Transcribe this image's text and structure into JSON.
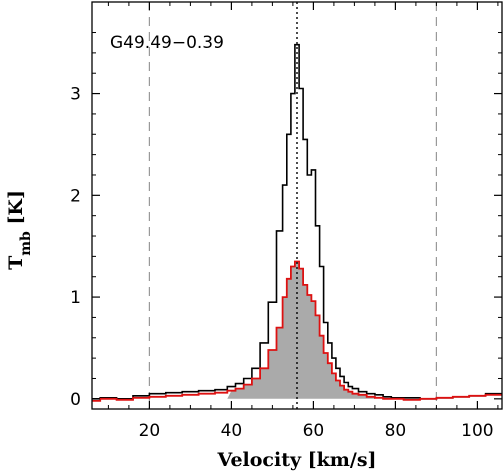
{
  "chart_data": {
    "type": "line",
    "source_label": "G49.49−0.39",
    "xlabel": "Velocity [km/s]",
    "ylabel_main": "T",
    "ylabel_sub": "mb",
    "ylabel_unit": " [K]",
    "xlim": [
      6,
      106
    ],
    "ylim": [
      -0.1,
      3.9
    ],
    "x_ticks": [
      20,
      40,
      60,
      80,
      100
    ],
    "y_ticks": [
      0,
      1,
      2,
      3
    ],
    "x_tick_labels": [
      "20",
      "40",
      "60",
      "80",
      "100"
    ],
    "y_tick_labels": [
      "0",
      "1",
      "2",
      "3"
    ],
    "vlines_dashed": [
      20,
      90
    ],
    "vline_dotted": 56,
    "grid": false,
    "colors": {
      "black_series": "#000000",
      "red_series": "#dd1111",
      "fill": "#aaaaaa",
      "dashed": "#999999"
    },
    "series": [
      {
        "style": "histogram-black",
        "x": [
          6,
          10,
          14,
          18,
          22,
          26,
          30,
          34,
          38,
          40,
          42,
          44,
          46,
          48,
          50,
          52,
          53,
          54,
          55,
          56,
          57,
          58,
          59,
          60,
          61,
          62,
          63,
          64,
          65,
          66,
          67,
          68,
          69,
          70,
          72,
          74,
          76,
          78,
          80,
          84,
          88,
          92,
          96,
          100,
          104
        ],
        "y": [
          0.0,
          0.01,
          0.0,
          0.03,
          0.05,
          0.06,
          0.07,
          0.08,
          0.09,
          0.12,
          0.15,
          0.2,
          0.3,
          0.55,
          0.95,
          1.65,
          2.1,
          2.6,
          3.0,
          3.48,
          3.05,
          2.55,
          2.2,
          2.25,
          1.7,
          1.3,
          0.75,
          0.55,
          0.4,
          0.3,
          0.22,
          0.16,
          0.12,
          0.1,
          0.07,
          0.05,
          0.04,
          0.02,
          0.01,
          0.01,
          0.0,
          0.01,
          0.02,
          0.03,
          0.05
        ]
      },
      {
        "style": "histogram-red-filled",
        "x": [
          6,
          10,
          14,
          18,
          22,
          26,
          30,
          34,
          38,
          40,
          42,
          44,
          46,
          48,
          50,
          52,
          53,
          54,
          55,
          56,
          57,
          58,
          59,
          60,
          61,
          62,
          63,
          64,
          65,
          66,
          67,
          68,
          69,
          70,
          72,
          74,
          76,
          78,
          80,
          84,
          88,
          92,
          96,
          100,
          104
        ],
        "y": [
          -0.02,
          0.0,
          -0.01,
          0.01,
          0.02,
          0.03,
          0.04,
          0.05,
          0.06,
          0.08,
          0.1,
          0.14,
          0.2,
          0.3,
          0.48,
          0.7,
          1.0,
          1.18,
          1.3,
          1.35,
          1.28,
          1.12,
          1.02,
          0.96,
          0.82,
          0.62,
          0.45,
          0.35,
          0.25,
          0.18,
          0.13,
          0.09,
          0.07,
          0.05,
          0.04,
          0.02,
          0.01,
          0.0,
          0.0,
          -0.01,
          0.0,
          0.01,
          0.02,
          0.03,
          0.04
        ]
      }
    ]
  }
}
